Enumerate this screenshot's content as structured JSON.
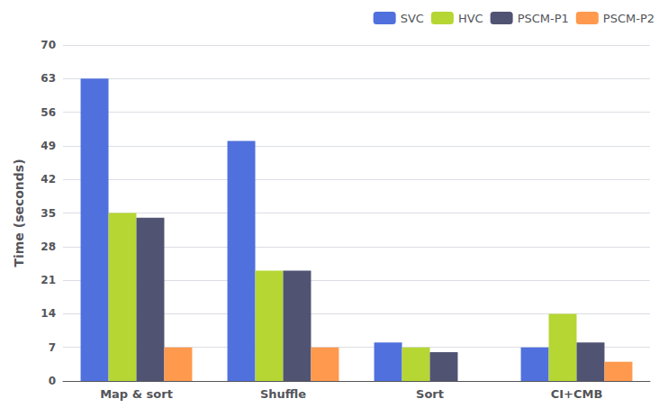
{
  "chart_data": {
    "type": "bar",
    "categories": [
      "Map & sort",
      "Shuffle",
      "Sort",
      "CI+CMB"
    ],
    "series": [
      {
        "name": "SVC",
        "values": [
          63,
          50,
          8,
          7
        ]
      },
      {
        "name": "HVC",
        "values": [
          35,
          23,
          7,
          14
        ]
      },
      {
        "name": "PSCM-P1",
        "values": [
          34,
          23,
          6,
          8
        ]
      },
      {
        "name": "PSCM-P2",
        "values": [
          7,
          7,
          0,
          4
        ]
      }
    ],
    "ylabel": "Time (seconds)",
    "ylim": [
      0,
      70
    ],
    "yticks": [
      0,
      7,
      14,
      21,
      28,
      35,
      42,
      49,
      56,
      63,
      70
    ],
    "grid": true,
    "legend": "upper right"
  }
}
